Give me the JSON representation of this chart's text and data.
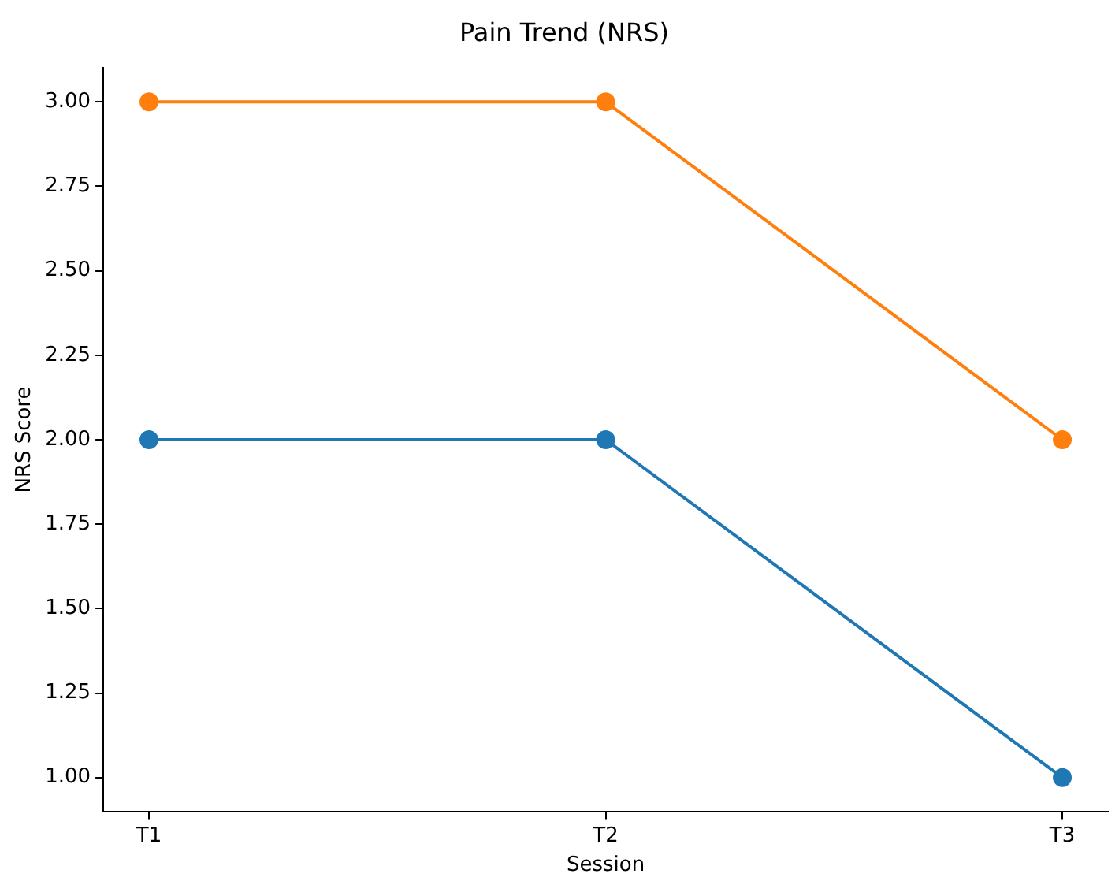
{
  "chart_data": {
    "type": "line",
    "title": "Pain Trend (NRS)",
    "xlabel": "Session",
    "ylabel": "NRS Score",
    "categories": [
      "T1",
      "T2",
      "T3"
    ],
    "series": [
      {
        "color": "#1f77b4",
        "values": [
          2,
          2,
          1
        ]
      },
      {
        "color": "#ff7f0e",
        "values": [
          3,
          3,
          2
        ]
      }
    ],
    "ylim": [
      0.9,
      3.1
    ],
    "yticks": [
      {
        "value": 1,
        "label": "1.00"
      },
      {
        "value": 1.25,
        "label": "1.25"
      },
      {
        "value": 1.5,
        "label": "1.50"
      },
      {
        "value": 1.75,
        "label": "1.75"
      },
      {
        "value": 2,
        "label": "2.00"
      },
      {
        "value": 2.25,
        "label": "2.25"
      },
      {
        "value": 2.5,
        "label": "2.50"
      },
      {
        "value": 2.75,
        "label": "2.75"
      },
      {
        "value": 3,
        "label": "3.00"
      }
    ],
    "grid": false,
    "legend": false,
    "marker": "circle",
    "line_style": "solid"
  }
}
